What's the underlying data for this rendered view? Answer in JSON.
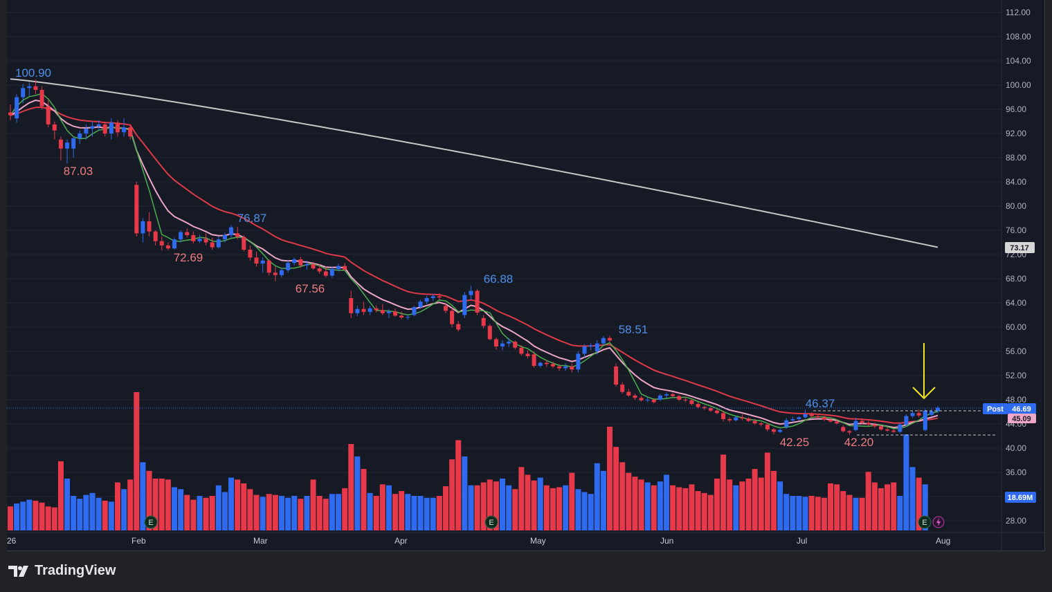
{
  "brand": {
    "name": "TradingView",
    "icon": "tradingview-logo-icon"
  },
  "colors": {
    "background": "#161a25",
    "up": "#2f6bf0",
    "down": "#e8394a",
    "ema_slow": "#e03a48",
    "ema_fast": "#f0a6c6",
    "sma_short": "#4caf50",
    "sma_long": "#c8c8c8",
    "high_label": "#4f8fe8",
    "low_label": "#f07c82",
    "arrow": "#f5e61d",
    "grid": "#232733"
  },
  "chart_data": {
    "type": "candlestick",
    "title": "",
    "y_axis": {
      "ticks": [
        "112.00",
        "108.00",
        "104.00",
        "100.00",
        "96.00",
        "92.00",
        "88.00",
        "84.00",
        "80.00",
        "76.00",
        "72.00",
        "68.00",
        "64.00",
        "60.00",
        "56.00",
        "52.00",
        "48.00",
        "44.00",
        "40.00",
        "36.00",
        "32.00",
        "28.00"
      ],
      "range": [
        26,
        113
      ]
    },
    "x_axis": {
      "labels": [
        "26",
        "Feb",
        "Mar",
        "Apr",
        "May",
        "Jun",
        "Jul",
        "Aug"
      ]
    },
    "price_labels": [
      {
        "text": "100.90",
        "kind": "high"
      },
      {
        "text": "87.03",
        "kind": "low"
      },
      {
        "text": "76.87",
        "kind": "high"
      },
      {
        "text": "72.69",
        "kind": "low"
      },
      {
        "text": "67.56",
        "kind": "low"
      },
      {
        "text": "66.88",
        "kind": "high"
      },
      {
        "text": "58.51",
        "kind": "high"
      },
      {
        "text": "46.37",
        "kind": "high"
      },
      {
        "text": "42.25",
        "kind": "low"
      },
      {
        "text": "42.20",
        "kind": "low"
      }
    ],
    "axis_badges": {
      "sma_long": "73.17",
      "post_tag": "Post",
      "last_price": "46.69",
      "ema_value": "45.09",
      "volume": "18.69M"
    },
    "ohlc": [
      [
        95.5,
        96.8,
        94.2,
        95.0
      ],
      [
        94.5,
        98.5,
        93.8,
        98.0
      ],
      [
        98.0,
        100.2,
        97.0,
        99.5
      ],
      [
        99.5,
        100.5,
        98.2,
        99.8
      ],
      [
        99.8,
        100.9,
        98.5,
        99.2
      ],
      [
        99.2,
        99.8,
        96.0,
        96.5
      ],
      [
        96.5,
        97.5,
        93.0,
        93.5
      ],
      [
        93.5,
        94.0,
        91.0,
        92.5
      ],
      [
        91.0,
        91.5,
        87.5,
        89.5
      ],
      [
        89.5,
        91.0,
        87.03,
        90.5
      ],
      [
        89.5,
        91.5,
        88.0,
        91.2
      ],
      [
        91.2,
        92.5,
        90.3,
        92.0
      ],
      [
        92.0,
        93.5,
        91.0,
        92.8
      ],
      [
        92.8,
        94.0,
        91.5,
        93.2
      ],
      [
        93.2,
        94.2,
        92.5,
        93.5
      ],
      [
        93.5,
        94.0,
        91.5,
        92.0
      ],
      [
        92.0,
        94.5,
        91.0,
        93.8
      ],
      [
        93.8,
        94.2,
        91.5,
        92.2
      ],
      [
        92.2,
        94.5,
        91.5,
        93.0
      ],
      [
        93.0,
        93.5,
        91.0,
        91.5
      ],
      [
        83.5,
        84.0,
        75.0,
        75.5
      ],
      [
        75.5,
        78.0,
        74.0,
        77.5
      ],
      [
        77.5,
        79.0,
        75.0,
        75.8
      ],
      [
        75.8,
        76.0,
        73.5,
        74.2
      ],
      [
        74.2,
        75.0,
        72.69,
        73.5
      ],
      [
        73.5,
        74.0,
        72.69,
        73.0
      ],
      [
        73.0,
        74.8,
        72.8,
        74.5
      ],
      [
        74.5,
        76.0,
        74.0,
        75.7
      ],
      [
        75.7,
        76.3,
        74.8,
        75.2
      ],
      [
        75.2,
        75.8,
        73.8,
        74.2
      ],
      [
        74.2,
        75.3,
        73.9,
        74.6
      ],
      [
        74.6,
        75.5,
        73.5,
        74.0
      ],
      [
        74.0,
        74.8,
        72.8,
        73.2
      ],
      [
        73.2,
        75.0,
        73.0,
        74.5
      ],
      [
        74.5,
        75.6,
        74.0,
        75.2
      ],
      [
        75.2,
        76.87,
        74.8,
        76.5
      ],
      [
        75.5,
        76.6,
        74.5,
        74.9
      ],
      [
        74.9,
        75.2,
        72.5,
        72.8
      ],
      [
        72.8,
        73.5,
        71.0,
        71.5
      ],
      [
        71.5,
        72.5,
        70.0,
        70.5
      ],
      [
        70.5,
        71.5,
        69.0,
        71.0
      ],
      [
        71.0,
        71.2,
        68.5,
        69.0
      ],
      [
        69.0,
        70.0,
        67.56,
        68.6
      ],
      [
        68.6,
        69.8,
        68.2,
        69.4
      ],
      [
        69.4,
        71.0,
        69.0,
        70.6
      ],
      [
        70.6,
        71.5,
        70.2,
        71.2
      ],
      [
        71.2,
        71.6,
        69.8,
        70.2
      ],
      [
        70.2,
        71.0,
        69.5,
        70.4
      ],
      [
        70.4,
        70.8,
        69.5,
        69.7
      ],
      [
        69.7,
        70.4,
        68.8,
        69.2
      ],
      [
        69.2,
        70.0,
        68.2,
        68.5
      ],
      [
        68.5,
        70.0,
        68.2,
        69.6
      ],
      [
        69.6,
        70.5,
        69.2,
        70.1
      ],
      [
        70.1,
        70.6,
        69.3,
        69.5
      ],
      [
        64.8,
        66.0,
        61.5,
        62.3
      ],
      [
        62.3,
        63.5,
        61.8,
        63.0
      ],
      [
        63.0,
        64.2,
        62.0,
        62.5
      ],
      [
        62.5,
        63.5,
        62.0,
        63.1
      ],
      [
        63.1,
        63.6,
        62.4,
        62.8
      ],
      [
        62.8,
        63.8,
        62.0,
        62.3
      ],
      [
        62.3,
        63.0,
        61.5,
        62.6
      ],
      [
        62.6,
        63.1,
        61.7,
        61.9
      ],
      [
        61.9,
        62.6,
        61.3,
        61.6
      ],
      [
        61.6,
        62.0,
        61.2,
        61.7
      ],
      [
        62.0,
        63.5,
        61.8,
        63.3
      ],
      [
        63.3,
        64.5,
        63.0,
        64.2
      ],
      [
        64.2,
        65.2,
        63.8,
        64.8
      ],
      [
        64.8,
        65.5,
        64.3,
        65.1
      ],
      [
        65.1,
        65.6,
        64.5,
        64.9
      ],
      [
        63.5,
        64.0,
        62.3,
        62.7
      ],
      [
        62.7,
        63.2,
        60.0,
        60.5
      ],
      [
        60.5,
        61.0,
        59.3,
        59.6
      ],
      [
        62.0,
        65.8,
        61.5,
        65.3
      ],
      [
        65.3,
        66.88,
        64.5,
        66.0
      ],
      [
        66.0,
        66.3,
        62.0,
        62.4
      ],
      [
        61.5,
        62.0,
        59.8,
        60.2
      ],
      [
        60.2,
        60.5,
        57.8,
        58.0
      ],
      [
        58.0,
        58.3,
        56.3,
        56.8
      ],
      [
        56.8,
        57.8,
        56.2,
        57.3
      ],
      [
        57.3,
        58.2,
        56.7,
        57.6
      ],
      [
        57.6,
        57.8,
        56.3,
        56.6
      ],
      [
        56.6,
        57.0,
        55.3,
        55.6
      ],
      [
        55.6,
        56.2,
        54.8,
        55.2
      ],
      [
        55.5,
        56.0,
        53.3,
        53.6
      ],
      [
        53.6,
        54.3,
        53.3,
        54.1
      ],
      [
        54.1,
        54.6,
        53.4,
        53.9
      ],
      [
        53.9,
        54.3,
        53.2,
        53.5
      ],
      [
        53.5,
        53.9,
        52.8,
        53.2
      ],
      [
        53.2,
        54.0,
        52.8,
        53.5
      ],
      [
        53.5,
        54.0,
        52.5,
        53.0
      ],
      [
        53.0,
        56.0,
        52.5,
        55.6
      ],
      [
        55.6,
        57.2,
        55.0,
        56.8
      ],
      [
        56.8,
        57.3,
        56.2,
        57.0
      ],
      [
        56.0,
        57.8,
        55.5,
        57.3
      ],
      [
        57.3,
        58.51,
        57.0,
        58.2
      ],
      [
        58.2,
        58.6,
        57.5,
        57.8
      ],
      [
        53.5,
        54.0,
        50.2,
        50.5
      ],
      [
        50.5,
        50.9,
        49.0,
        49.3
      ],
      [
        49.3,
        49.8,
        48.5,
        48.7
      ],
      [
        48.7,
        49.0,
        48.0,
        48.3
      ],
      [
        48.3,
        48.6,
        47.7,
        47.9
      ],
      [
        47.9,
        48.4,
        47.6,
        48.0
      ],
      [
        48.0,
        48.2,
        47.4,
        47.6
      ],
      [
        48.0,
        49.0,
        47.8,
        48.7
      ],
      [
        48.7,
        49.2,
        48.3,
        48.9
      ],
      [
        48.9,
        49.2,
        48.4,
        48.6
      ],
      [
        48.6,
        48.8,
        47.8,
        48.0
      ],
      [
        48.0,
        48.5,
        47.6,
        47.9
      ],
      [
        47.9,
        48.1,
        47.1,
        47.3
      ],
      [
        47.3,
        47.6,
        46.6,
        46.8
      ],
      [
        46.8,
        47.0,
        46.3,
        46.6
      ],
      [
        46.6,
        46.8,
        46.0,
        46.2
      ],
      [
        46.2,
        46.4,
        45.6,
        45.8
      ],
      [
        45.8,
        46.2,
        44.4,
        44.8
      ],
      [
        44.8,
        45.1,
        44.3,
        44.6
      ],
      [
        44.6,
        45.3,
        44.4,
        45.1
      ],
      [
        45.1,
        45.6,
        44.6,
        44.9
      ],
      [
        44.9,
        45.1,
        44.3,
        44.5
      ],
      [
        44.5,
        44.8,
        43.9,
        44.1
      ],
      [
        44.1,
        44.3,
        43.6,
        43.9
      ],
      [
        43.9,
        44.1,
        42.8,
        43.1
      ],
      [
        43.1,
        43.3,
        42.25,
        42.7
      ],
      [
        42.7,
        43.2,
        42.5,
        43.0
      ],
      [
        43.5,
        45.0,
        43.2,
        44.6
      ],
      [
        44.6,
        45.2,
        44.3,
        44.8
      ],
      [
        44.8,
        45.3,
        44.5,
        45.1
      ],
      [
        45.1,
        46.37,
        44.9,
        45.6
      ],
      [
        45.6,
        45.9,
        45.0,
        45.3
      ],
      [
        45.3,
        45.7,
        44.9,
        45.1
      ],
      [
        45.1,
        45.3,
        44.5,
        44.7
      ],
      [
        44.7,
        45.0,
        44.2,
        44.4
      ],
      [
        44.4,
        44.8,
        43.9,
        44.1
      ],
      [
        43.5,
        43.8,
        42.6,
        42.8
      ],
      [
        42.8,
        43.0,
        42.2,
        42.6
      ],
      [
        43.0,
        45.0,
        42.8,
        44.5
      ],
      [
        44.5,
        44.9,
        43.9,
        44.2
      ],
      [
        44.2,
        44.5,
        43.6,
        43.9
      ],
      [
        43.9,
        44.2,
        43.3,
        43.6
      ],
      [
        43.6,
        43.9,
        42.9,
        43.1
      ],
      [
        43.1,
        43.4,
        42.7,
        42.9
      ],
      [
        42.9,
        43.1,
        42.5,
        42.7
      ],
      [
        42.7,
        44.2,
        42.5,
        43.9
      ],
      [
        43.9,
        45.6,
        43.6,
        45.3
      ],
      [
        45.3,
        46.2,
        45.0,
        45.8
      ],
      [
        45.8,
        46.4,
        45.1,
        45.4
      ],
      [
        43.0,
        46.5,
        42.8,
        46.2
      ],
      [
        45.5,
        46.5,
        45.2,
        46.1
      ],
      [
        46.1,
        47.0,
        45.8,
        46.69
      ]
    ],
    "volume": [
      2.5,
      2.8,
      3.0,
      3.2,
      3.1,
      2.9,
      2.5,
      2.4,
      7.2,
      5.4,
      3.6,
      3.3,
      3.7,
      3.9,
      3.4,
      3.1,
      3.0,
      5.0,
      4.3,
      5.3,
      14.4,
      7.1,
      6.2,
      5.4,
      5.4,
      5.3,
      4.5,
      4.3,
      3.7,
      3.2,
      3.6,
      3.4,
      3.6,
      4.7,
      4.0,
      5.5,
      5.3,
      4.9,
      4.3,
      3.7,
      3.5,
      3.8,
      3.7,
      3.6,
      3.4,
      3.6,
      3.3,
      3.6,
      5.3,
      3.6,
      3.3,
      3.8,
      3.8,
      4.4,
      9.0,
      7.7,
      6.4,
      3.9,
      3.6,
      4.8,
      4.7,
      3.8,
      4.1,
      3.8,
      3.6,
      3.6,
      3.4,
      3.4,
      3.6,
      4.6,
      7.4,
      9.4,
      7.7,
      4.7,
      4.7,
      5.0,
      5.3,
      5.1,
      5.4,
      4.7,
      4.3,
      6.6,
      5.8,
      5.2,
      5.5,
      4.7,
      4.4,
      4.5,
      4.7,
      6.0,
      4.3,
      4.0,
      3.8,
      7.0,
      6.2,
      10.8,
      8.7,
      7.1,
      6.0,
      5.6,
      5.3,
      5.0,
      4.7,
      5.1,
      5.8,
      4.7,
      4.5,
      4.4,
      4.8,
      4.1,
      3.9,
      3.7,
      5.4,
      7.9,
      5.3,
      4.7,
      5.1,
      5.4,
      6.4,
      5.5,
      8.1,
      6.2,
      5.1,
      3.8,
      3.6,
      3.6,
      3.5,
      3.6,
      3.5,
      3.4,
      4.9,
      4.8,
      4.1,
      3.7,
      3.4,
      3.4,
      6.1,
      5.0,
      4.4,
      4.8,
      5.0,
      3.6,
      10.0,
      6.6,
      5.5,
      4.8
    ]
  }
}
